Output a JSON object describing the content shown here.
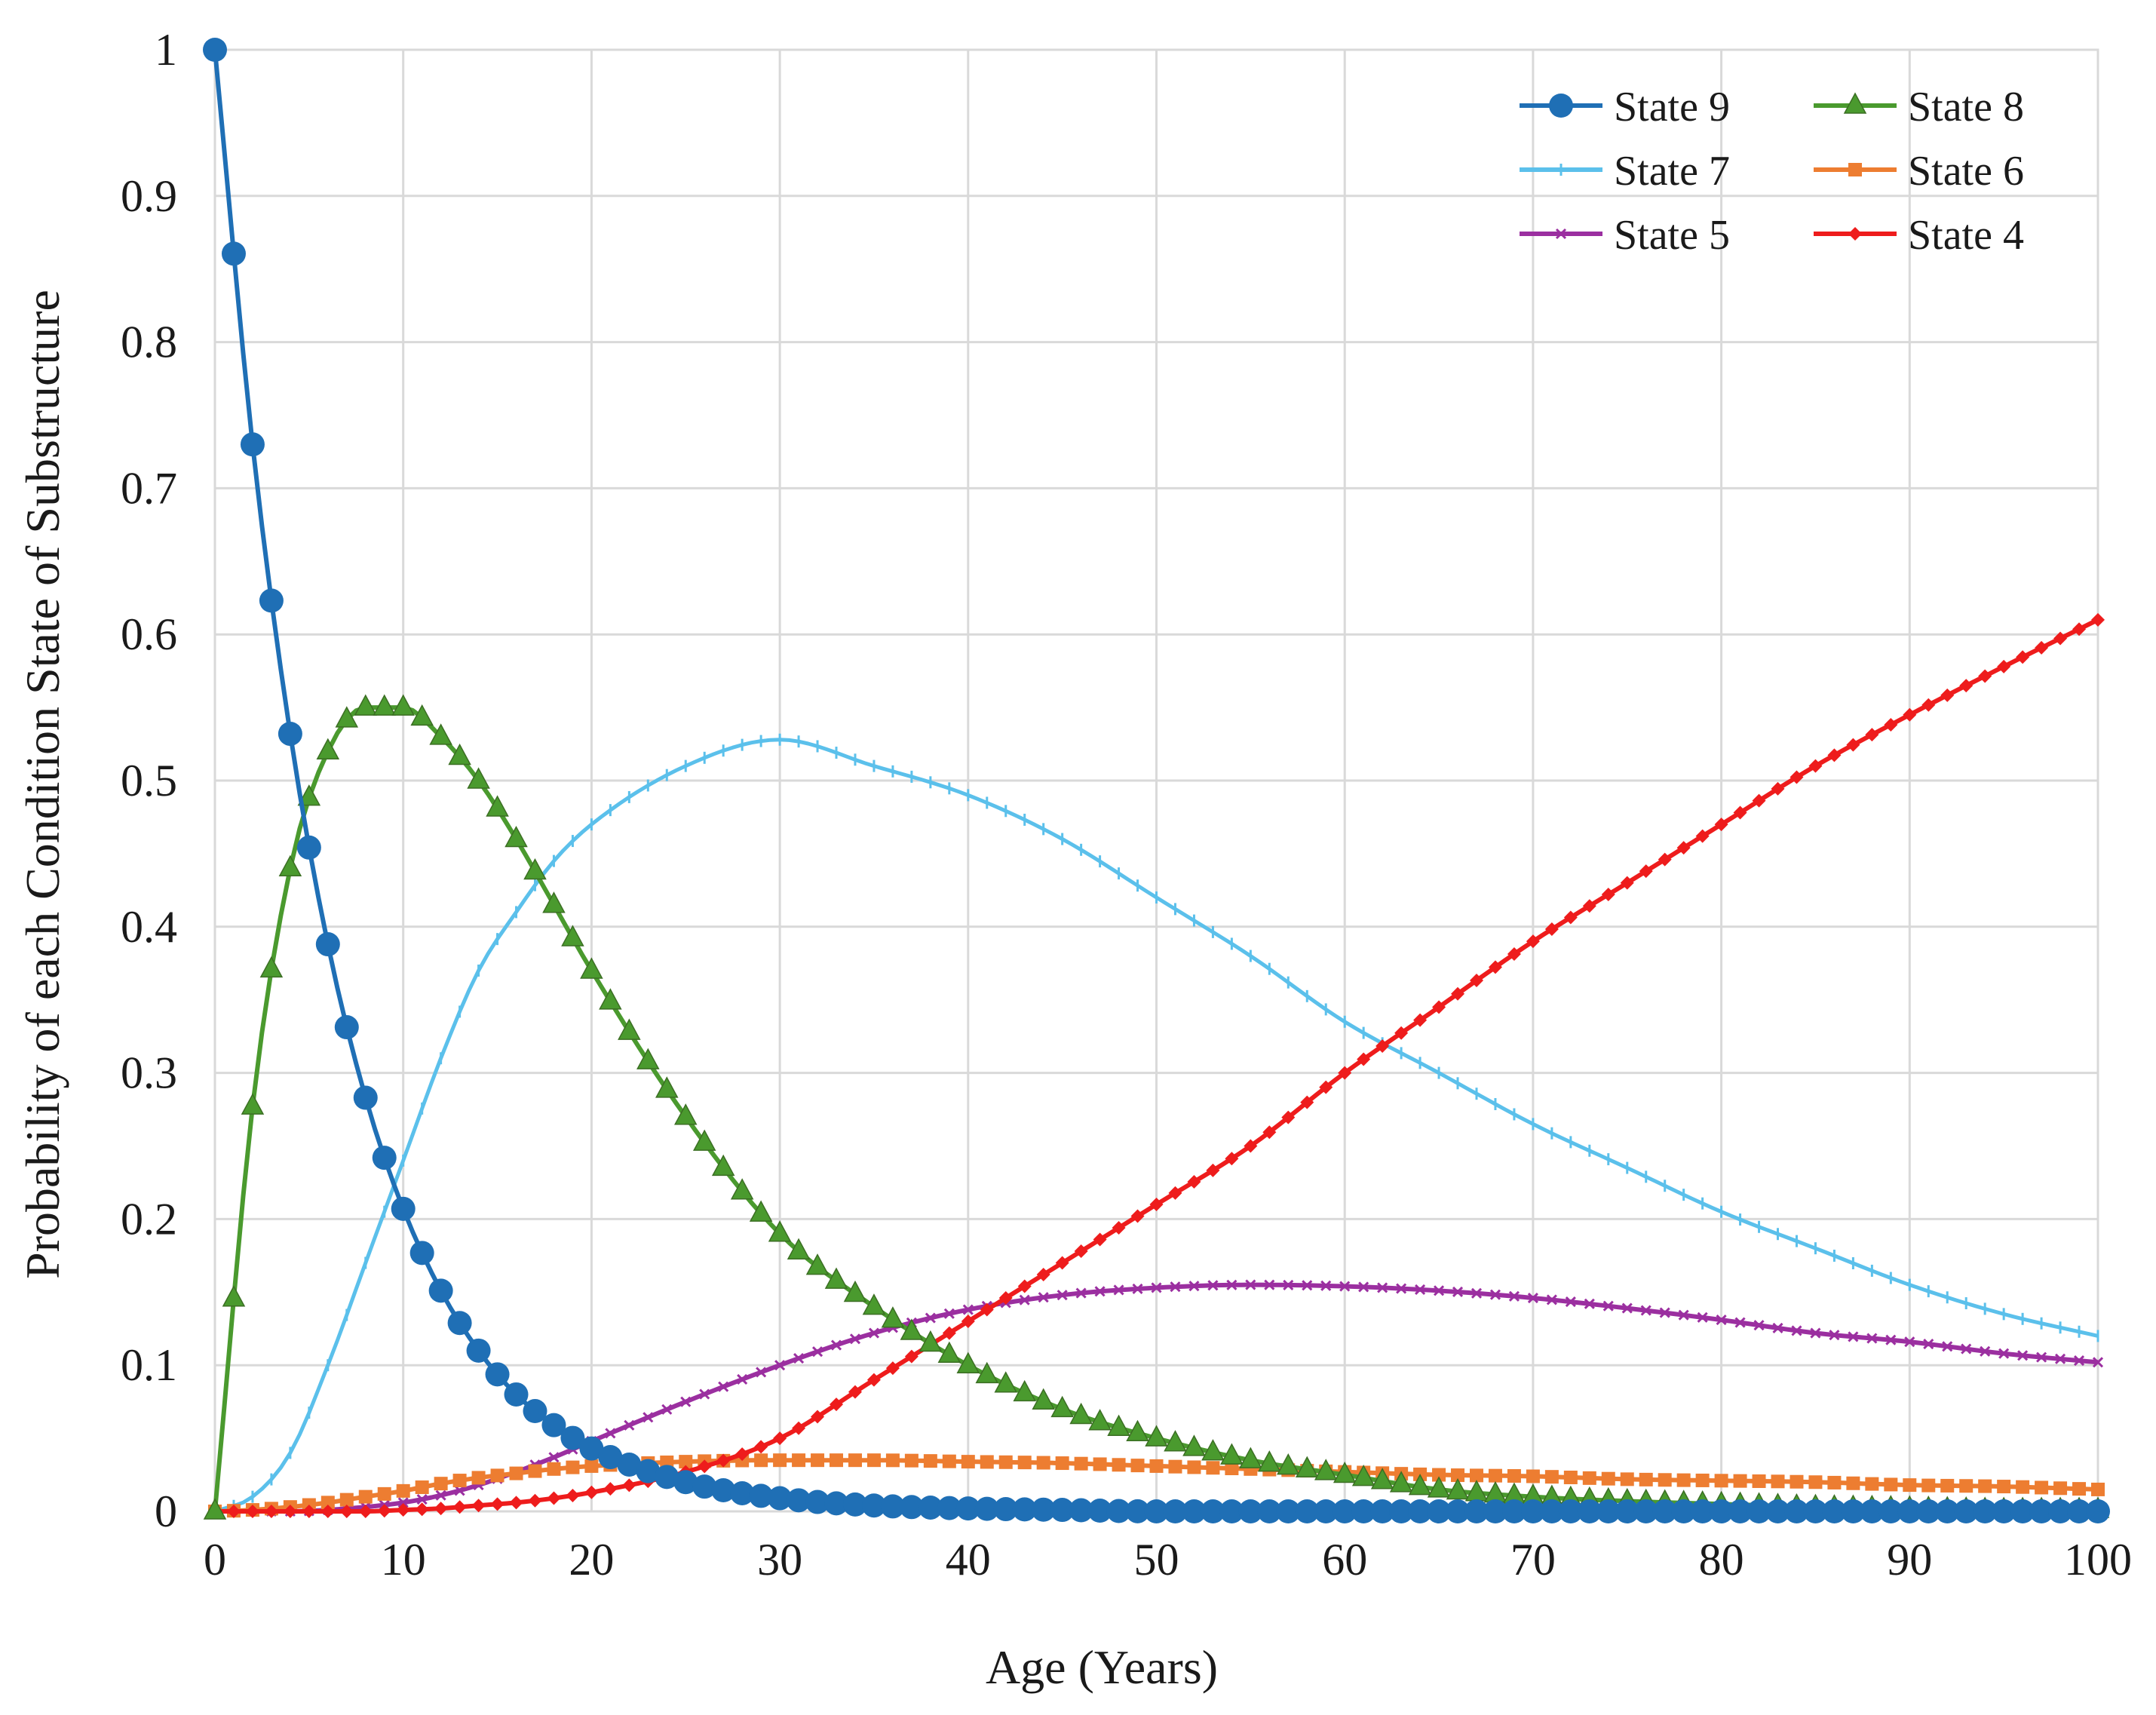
{
  "chart_data": {
    "type": "line",
    "title": "",
    "xlabel": "Age (Years)",
    "ylabel": "Probability of each Condition State of Substructure",
    "xlim": [
      0,
      100
    ],
    "ylim": [
      0,
      1
    ],
    "grid": true,
    "legend_position": "top-right",
    "x_ticks": [
      "0",
      "10",
      "20",
      "30",
      "40",
      "50",
      "60",
      "70",
      "80",
      "90",
      "100"
    ],
    "y_ticks": [
      "0",
      "0.1",
      "0.2",
      "0.3",
      "0.4",
      "0.5",
      "0.6",
      "0.7",
      "0.8",
      "0.9",
      "1"
    ],
    "x": [
      0,
      2,
      4,
      6,
      8,
      10,
      12,
      14,
      16,
      18,
      20,
      25,
      30,
      35,
      40,
      45,
      50,
      55,
      60,
      65,
      70,
      75,
      80,
      85,
      90,
      95,
      100
    ],
    "series": [
      {
        "name": "State 9",
        "color": "#1f6fb5",
        "marker": "circle",
        "values": [
          1.0,
          0.73,
          0.532,
          0.388,
          0.283,
          0.207,
          0.151,
          0.11,
          0.08,
          0.059,
          0.043,
          0.02,
          0.009,
          0.004,
          0.002,
          0.001,
          0.0,
          0.0,
          0.0,
          0.0,
          0.0,
          0.0,
          0.0,
          0.0,
          0.0,
          0.0,
          0.0
        ]
      },
      {
        "name": "State 8",
        "color": "#4a9a2e",
        "marker": "triangle",
        "values": [
          0.0,
          0.277,
          0.44,
          0.52,
          0.55,
          0.55,
          0.53,
          0.5,
          0.46,
          0.415,
          0.37,
          0.27,
          0.19,
          0.14,
          0.1,
          0.07,
          0.05,
          0.035,
          0.025,
          0.015,
          0.01,
          0.007,
          0.005,
          0.003,
          0.002,
          0.001,
          0.001
        ]
      },
      {
        "name": "State 7",
        "color": "#5bc0eb",
        "marker": "dash",
        "values": [
          0.0,
          0.01,
          0.04,
          0.1,
          0.17,
          0.24,
          0.31,
          0.37,
          0.41,
          0.445,
          0.47,
          0.51,
          0.528,
          0.51,
          0.49,
          0.46,
          0.42,
          0.38,
          0.335,
          0.3,
          0.265,
          0.235,
          0.205,
          0.18,
          0.155,
          0.135,
          0.12
        ]
      },
      {
        "name": "State 6",
        "color": "#ed7d31",
        "marker": "square",
        "values": [
          0.0,
          0.001,
          0.003,
          0.006,
          0.01,
          0.014,
          0.019,
          0.023,
          0.026,
          0.029,
          0.031,
          0.034,
          0.035,
          0.035,
          0.034,
          0.033,
          0.031,
          0.029,
          0.027,
          0.025,
          0.024,
          0.022,
          0.021,
          0.02,
          0.018,
          0.017,
          0.015
        ]
      },
      {
        "name": "State 5",
        "color": "#9b2fa0",
        "marker": "cross",
        "values": [
          0.0,
          0.0,
          0.0,
          0.001,
          0.003,
          0.006,
          0.011,
          0.018,
          0.027,
          0.037,
          0.048,
          0.075,
          0.1,
          0.122,
          0.138,
          0.148,
          0.153,
          0.155,
          0.154,
          0.151,
          0.146,
          0.139,
          0.131,
          0.122,
          0.116,
          0.108,
          0.102
        ]
      },
      {
        "name": "State 4",
        "color": "#ee1c1c",
        "marker": "diamond",
        "values": [
          0.0,
          0.0,
          0.0,
          0.0,
          0.0,
          0.001,
          0.002,
          0.004,
          0.006,
          0.009,
          0.013,
          0.027,
          0.05,
          0.09,
          0.13,
          0.17,
          0.21,
          0.25,
          0.3,
          0.345,
          0.39,
          0.43,
          0.47,
          0.51,
          0.545,
          0.578,
          0.61
        ]
      }
    ]
  }
}
